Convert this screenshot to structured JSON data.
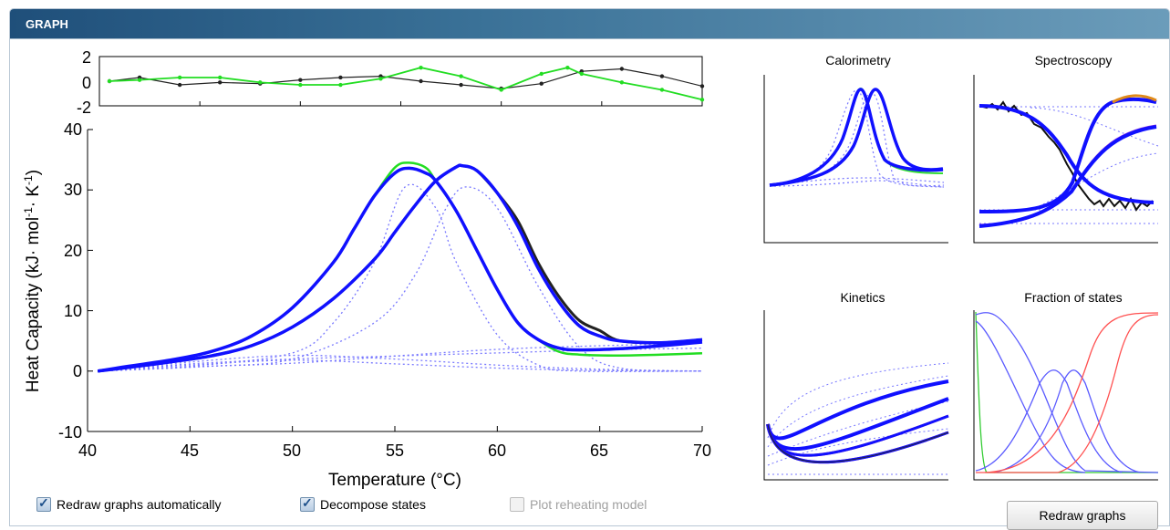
{
  "header": {
    "title": "GRAPH"
  },
  "colors": {
    "header_dark": "#1f4f7a",
    "header_light": "#6b9cba",
    "fit": "#1010ff",
    "data": "#222222",
    "alt": "#22dd22",
    "dotted": "#7878ff"
  },
  "main_chart": {
    "xlabel": "Temperature (°C)",
    "ylabel_main": "Heat Capacity (kJ· mol",
    "ylabel_sup1": "-1",
    "ylabel_mid": "· K",
    "ylabel_sup2": "-1",
    "ylabel_end": ")",
    "x_ticks": [
      "40",
      "45",
      "50",
      "55",
      "60",
      "65",
      "70"
    ],
    "y_ticks": [
      "-10",
      "0",
      "10",
      "20",
      "30",
      "40"
    ],
    "residual_ticks": [
      "2",
      "0",
      "-2"
    ]
  },
  "side_charts": {
    "calorimetry_title": "Calorimetry",
    "spectroscopy_title": "Spectroscopy",
    "kinetics_title": "Kinetics",
    "fraction_title": "Fraction of states"
  },
  "controls": {
    "redraw_auto_label": "Redraw graphs automatically",
    "redraw_auto_checked": true,
    "decompose_label": "Decompose states",
    "decompose_checked": true,
    "reheating_label": "Plot reheating model",
    "reheating_checked": false,
    "reheating_enabled": false,
    "redraw_button": "Redraw graphs"
  },
  "chart_data": [
    {
      "type": "line",
      "title": "",
      "xlabel": "Temperature (°C)",
      "ylabel": "Heat Capacity (kJ· mol-1· K-1)",
      "xlim": [
        40,
        70
      ],
      "ylim": [
        -10,
        40
      ],
      "series": [
        {
          "x": [
            40.5,
            42,
            44,
            46,
            48,
            50,
            52,
            53,
            54,
            55,
            55.7,
            56.5,
            57,
            58,
            59,
            60,
            61,
            62,
            63,
            64,
            66,
            68,
            70
          ],
          "y": [
            0,
            0.8,
            1.8,
            3.2,
            5.8,
            10.5,
            18,
            23.5,
            29,
            32.8,
            33.6,
            32.8,
            31.5,
            26.5,
            20,
            13.5,
            8,
            5.2,
            3.8,
            3.5,
            3.7,
            4.2,
            4.8
          ]
        },
        {
          "x": [
            40.5,
            42,
            44,
            46,
            48,
            50,
            52,
            54,
            55,
            56,
            57,
            58,
            58.3,
            59,
            60,
            61,
            62,
            63,
            64,
            65,
            66,
            68,
            70
          ],
          "y": [
            0,
            0.6,
            1.5,
            2.5,
            4.2,
            7.3,
            12,
            18.5,
            23,
            27.5,
            31.5,
            33.8,
            34,
            33.2,
            29.5,
            24,
            17,
            11.5,
            7.5,
            5.8,
            5,
            4.7,
            5.2
          ]
        }
      ]
    },
    {
      "type": "line",
      "title": "",
      "xlim": [
        40,
        70
      ],
      "ylim": [
        -2,
        2
      ],
      "series": [
        {
          "x": [
            40.5,
            42,
            44,
            46,
            48,
            50,
            52,
            54,
            56,
            58,
            60,
            62,
            64,
            66,
            68,
            70
          ],
          "y": [
            0,
            0.3,
            -0.3,
            -0.1,
            -0.2,
            0.1,
            0.3,
            0.4,
            0,
            -0.3,
            -0.6,
            -0.2,
            0.8,
            1,
            0.4,
            -0.4
          ]
        },
        {
          "x": [
            40.5,
            42,
            44,
            46,
            48,
            50,
            52,
            54,
            56,
            58,
            60,
            62,
            63.3,
            64,
            66,
            68,
            70
          ],
          "y": [
            0,
            0.1,
            0.3,
            0.3,
            -0.1,
            -0.3,
            -0.3,
            0.2,
            1.1,
            0.4,
            -0.7,
            0.6,
            1.1,
            0.6,
            -0.1,
            -0.7,
            -1.5
          ]
        }
      ]
    }
  ]
}
